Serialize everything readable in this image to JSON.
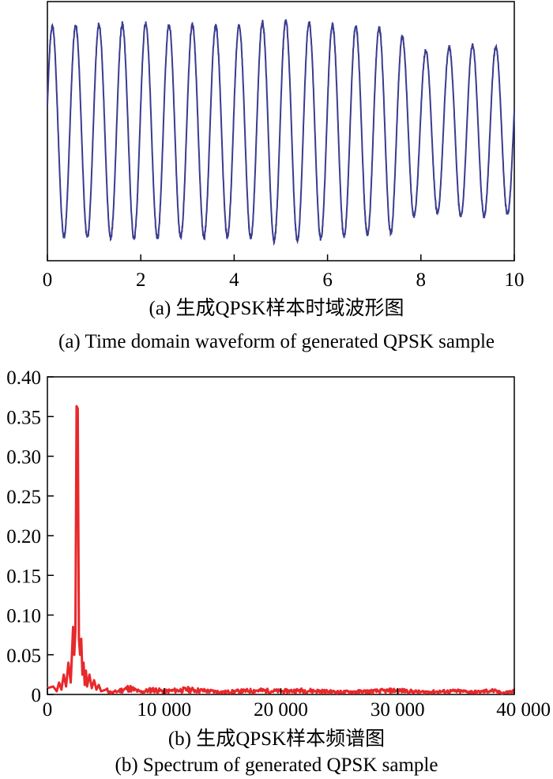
{
  "colors": {
    "waveform": "#3b3b8f",
    "spectrum": "#e8282b",
    "axis": "#000000"
  },
  "chart_data": [
    {
      "type": "line",
      "xlim": [
        0,
        10
      ],
      "x_ticks": [
        "0",
        "2",
        "4",
        "6",
        "8",
        "10"
      ],
      "y_ticks": [],
      "grid": false,
      "cycles_per_unit": 2.0,
      "amplitude_envelope": [
        {
          "x": 0.0,
          "y": 0.95
        },
        {
          "x": 2.0,
          "y": 0.97
        },
        {
          "x": 4.0,
          "y": 0.95
        },
        {
          "x": 5.0,
          "y": 1.0
        },
        {
          "x": 6.0,
          "y": 0.97
        },
        {
          "x": 7.4,
          "y": 0.92
        },
        {
          "x": 8.0,
          "y": 0.72
        },
        {
          "x": 9.0,
          "y": 0.78
        },
        {
          "x": 10.0,
          "y": 0.75
        }
      ],
      "captions": [
        "(a) 生成QPSK样本时域波形图",
        "(a) Time domain waveform of generated QPSK sample"
      ]
    },
    {
      "type": "line",
      "xlim": [
        0,
        40000
      ],
      "ylim": [
        0,
        0.4
      ],
      "x_ticks": [
        "0",
        "10 000",
        "20 000",
        "30 000",
        "40 000"
      ],
      "y_ticks": [
        "0",
        "0.05",
        "0.10",
        "0.15",
        "0.20",
        "0.25",
        "0.30",
        "0.35",
        "0.40"
      ],
      "grid": false,
      "x": [
        0,
        500,
        800,
        1000,
        1200,
        1400,
        1600,
        1800,
        2000,
        2200,
        2300,
        2400,
        2500,
        2600,
        2700,
        2800,
        2900,
        3000,
        3100,
        3200,
        3300,
        3400,
        3600,
        3800,
        4000,
        4200,
        4400,
        4600,
        5000,
        5500,
        6000,
        7000,
        8000,
        9000,
        10000,
        12000,
        15000,
        18000,
        20000,
        22000,
        25000,
        28000,
        30000,
        32000,
        35000,
        37000,
        38000,
        39000,
        40000
      ],
      "y": [
        0.008,
        0.01,
        0.004,
        0.015,
        0.006,
        0.025,
        0.01,
        0.04,
        0.015,
        0.085,
        0.05,
        0.08,
        0.363,
        0.36,
        0.07,
        0.05,
        0.07,
        0.025,
        0.04,
        0.012,
        0.03,
        0.01,
        0.025,
        0.008,
        0.018,
        0.006,
        0.012,
        0.004,
        0.006,
        0.002,
        0.004,
        0.008,
        0.003,
        0.006,
        0.004,
        0.006,
        0.003,
        0.005,
        0.004,
        0.005,
        0.003,
        0.004,
        0.005,
        0.003,
        0.004,
        0.003,
        0.005,
        0.002,
        0.004
      ],
      "captions": [
        "(b) 生成QPSK样本频谱图",
        "(b) Spectrum of generated QPSK sample"
      ]
    }
  ]
}
